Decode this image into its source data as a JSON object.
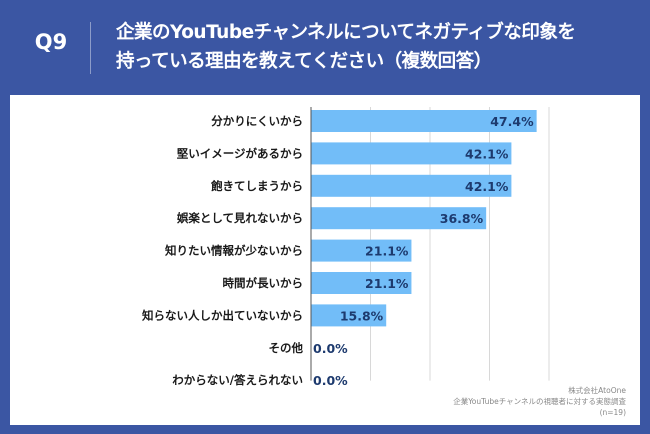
{
  "header": {
    "question_no": "Q9",
    "title_line1": "企業のYouTubeチャンネルについてネガティブな印象を",
    "title_line2": "持っている理由を教えてください（複数回答）"
  },
  "source": {
    "company": "株式会社AtoOne",
    "survey": "企業YouTubeチャンネルの視聴者に対する実態調査",
    "sample": "(n=19)"
  },
  "colors": {
    "background": "#3b56a3",
    "bar": "#72bdf8",
    "value_text": "#1d3a6e"
  },
  "chart_data": {
    "type": "bar",
    "orientation": "horizontal",
    "categories": [
      "分かりにくいから",
      "堅いイメージがあるから",
      "飽きてしまうから",
      "娯楽として見れないから",
      "知りたい情報が少ないから",
      "時間が長いから",
      "知らない人しか出ていないから",
      "その他",
      "わからない/答えられない"
    ],
    "values": [
      47.4,
      42.1,
      42.1,
      36.8,
      21.1,
      21.1,
      15.8,
      0.0,
      0.0
    ],
    "data_labels": [
      "47.4%",
      "42.1%",
      "42.1%",
      "36.8%",
      "21.1%",
      "21.1%",
      "15.8%",
      "0.0%",
      "0.0%"
    ],
    "xlim": [
      0,
      50
    ],
    "grid": true,
    "grid_step": 12.5
  }
}
